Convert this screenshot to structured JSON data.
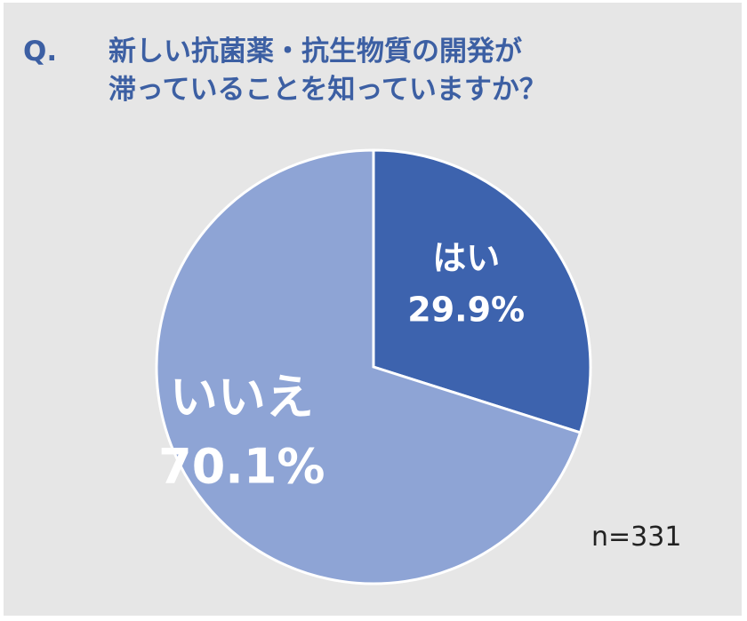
{
  "question": {
    "prefix": "Q.",
    "line1": "新しい抗菌薬・抗生物質の開発が",
    "line2": "滞っていることを知っていますか？"
  },
  "sample_size": "n=331",
  "chart_data": {
    "type": "pie",
    "slices": [
      {
        "label": "はい",
        "value": 29.9,
        "value_text": "29.9%",
        "color": "#3d63ae"
      },
      {
        "label": "いいえ",
        "value": 70.1,
        "value_text": "70.1%",
        "color": "#8ea4d5"
      }
    ],
    "start_angle_deg": 0,
    "direction": "clockwise"
  }
}
